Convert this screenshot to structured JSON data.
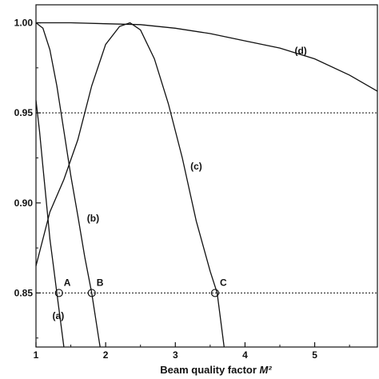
{
  "chart_data": {
    "type": "line",
    "xlabel": "Beam quality factor ",
    "xlabel_italic": "M²",
    "ylabel": "",
    "xlim": [
      1,
      5.9
    ],
    "ylim": [
      0.82,
      1.01
    ],
    "grid": false,
    "x_ticks": [
      1,
      2,
      3,
      4,
      5
    ],
    "y_ticks": [
      0.85,
      0.9,
      0.95,
      1.0
    ],
    "x_tick_labels": [
      "1",
      "2",
      "3",
      "4",
      "5"
    ],
    "y_tick_labels": [
      "0.85",
      "0.90",
      "0.95",
      "1.00"
    ],
    "reference_lines": [
      0.95,
      0.85
    ],
    "series": [
      {
        "name": "(a)",
        "x": [
          1.0,
          1.05,
          1.1,
          1.15,
          1.2,
          1.25,
          1.3,
          1.35,
          1.4
        ],
        "y": [
          0.957,
          0.94,
          0.92,
          0.9,
          0.88,
          0.865,
          0.85,
          0.835,
          0.82
        ],
        "label_at": [
          1.32,
          0.837
        ]
      },
      {
        "name": "(b)",
        "x": [
          1.0,
          1.1,
          1.2,
          1.3,
          1.4,
          1.5,
          1.6,
          1.7,
          1.8,
          1.9,
          1.92
        ],
        "y": [
          1.0,
          0.997,
          0.985,
          0.965,
          0.94,
          0.915,
          0.893,
          0.87,
          0.85,
          0.825,
          0.82
        ],
        "label_at": [
          1.82,
          0.891
        ]
      },
      {
        "name": "(c)",
        "x": [
          1.0,
          1.2,
          1.4,
          1.6,
          1.8,
          2.0,
          2.2,
          2.35,
          2.5,
          2.7,
          2.9,
          3.1,
          3.3,
          3.5,
          3.6,
          3.7
        ],
        "y": [
          0.865,
          0.895,
          0.913,
          0.935,
          0.965,
          0.988,
          0.998,
          1.0,
          0.996,
          0.98,
          0.955,
          0.925,
          0.89,
          0.862,
          0.85,
          0.82
        ],
        "label_at": [
          3.3,
          0.92
        ]
      },
      {
        "name": "(d)",
        "x": [
          1.0,
          1.5,
          2.0,
          2.5,
          3.0,
          3.5,
          4.0,
          4.5,
          5.0,
          5.5,
          5.9
        ],
        "y": [
          1.0,
          1.0,
          0.9995,
          0.999,
          0.997,
          0.994,
          0.99,
          0.986,
          0.98,
          0.971,
          0.962
        ],
        "label_at": [
          4.8,
          0.984
        ]
      }
    ],
    "points": [
      {
        "label": "A",
        "x": 1.33,
        "y": 0.85
      },
      {
        "label": "B",
        "x": 1.8,
        "y": 0.85
      },
      {
        "label": "C",
        "x": 3.57,
        "y": 0.85
      }
    ]
  }
}
